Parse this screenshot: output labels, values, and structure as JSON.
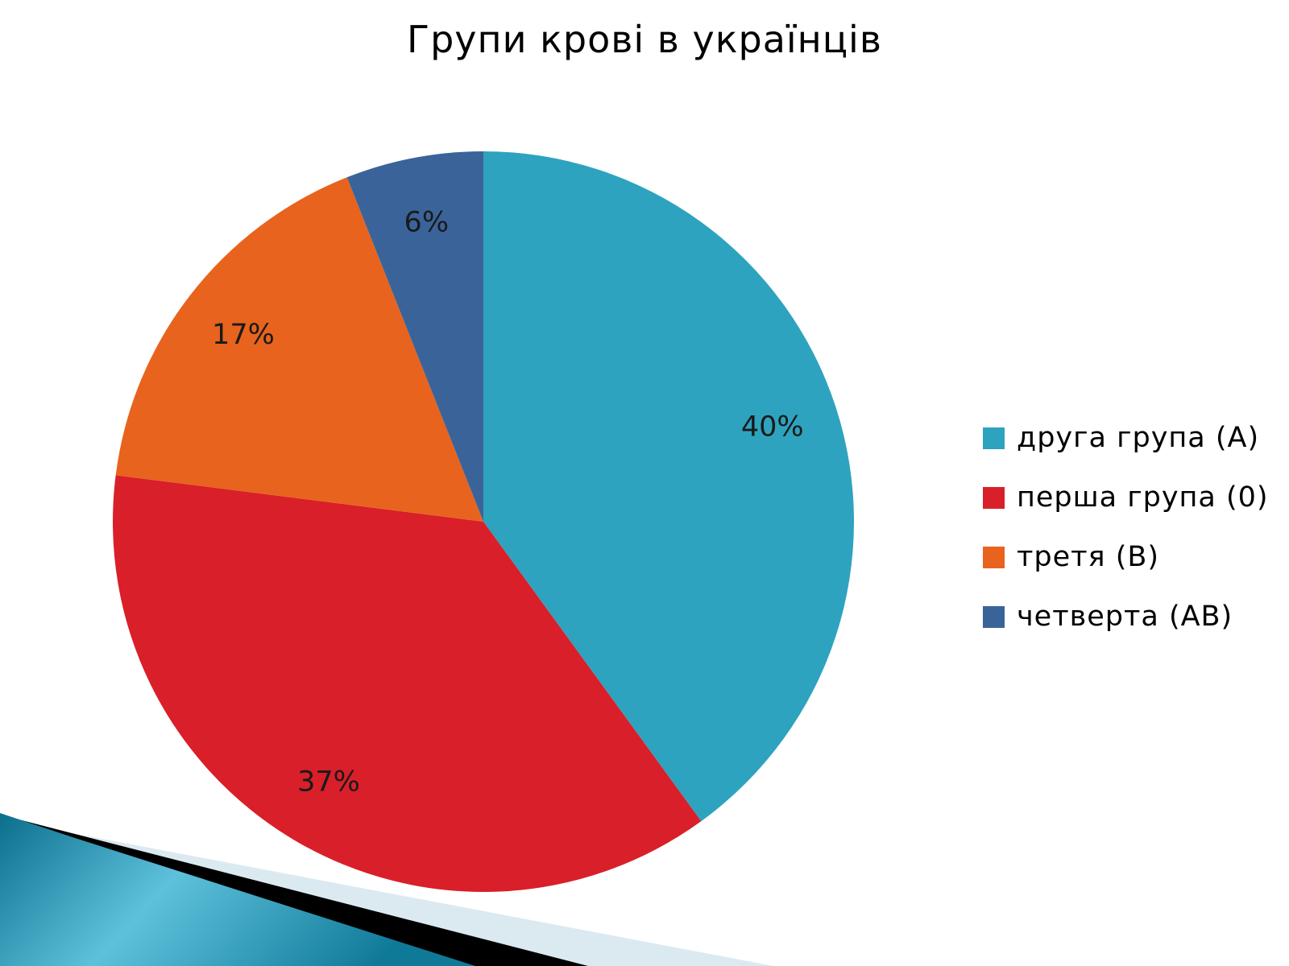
{
  "colors": {
    "a": "#2ea3bf",
    "o": "#d91f29",
    "b": "#e8631d",
    "ab": "#3a6499",
    "deco_light": "#dbeaf0",
    "deco_dark": "#000000",
    "deco_blue_1": "#0b6f8c",
    "deco_blue_2": "#5ec1dc"
  },
  "chart_data": {
    "type": "pie",
    "title": "Групи крові в українців",
    "categories": [
      "друга група (A)",
      "перша група (0)",
      "третя (B)",
      "четверта (AB)"
    ],
    "values": [
      40,
      37,
      17,
      6
    ],
    "labels": [
      "40%",
      "37%",
      "17%",
      "6%"
    ],
    "colors": [
      "#2ea3bf",
      "#d91f29",
      "#e8631d",
      "#3a6499"
    ],
    "start": "12 o'clock, clockwise",
    "legend_position": "right"
  }
}
